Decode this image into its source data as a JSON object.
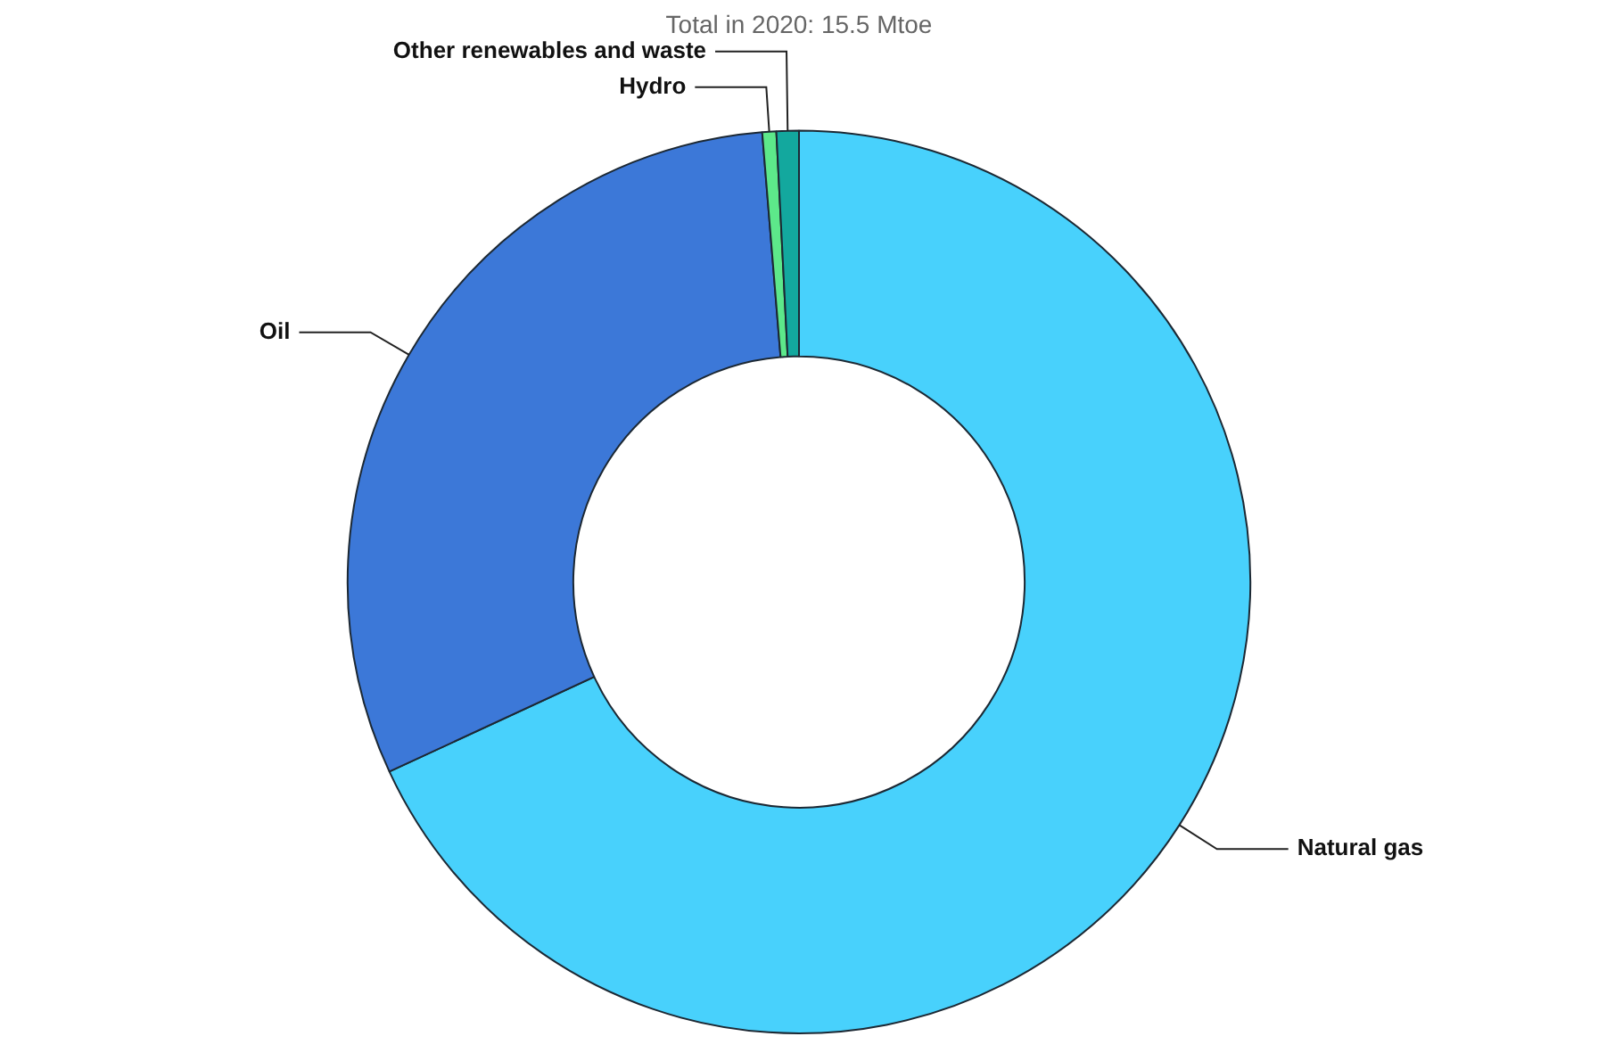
{
  "chart_data": {
    "type": "donut",
    "title": "Total in 2020: 15.5 Mtoe",
    "categories": [
      "Natural gas",
      "Oil",
      "Hydro",
      "Other renewables and waste"
    ],
    "values": [
      68.1,
      30.6,
      0.5,
      0.8
    ],
    "colors": [
      "#48d1fc",
      "#3c78d8",
      "#5de88a",
      "#13a89e"
    ],
    "legend": false
  }
}
